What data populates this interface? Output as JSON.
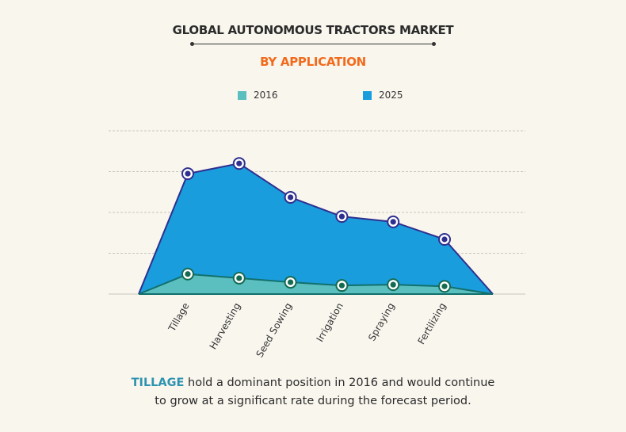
{
  "header": {
    "title": "GLOBAL AUTONOMOUS TRACTORS MARKET",
    "subtitle": "BY APPLICATION"
  },
  "caption": {
    "highlight": "TILLAGE",
    "line1_rest": " hold a dominant position in 2016 and would continue",
    "line2": "to grow at a significant rate during the forecast period."
  },
  "chart_data": {
    "type": "area",
    "title": "GLOBAL AUTONOMOUS TRACTORS MARKET",
    "subtitle": "BY APPLICATION",
    "categories": [
      "Tillage",
      "Harvesting",
      "Seed Sowing",
      "Irrigation",
      "Spraying",
      "Fertilizing"
    ],
    "series": [
      {
        "name": "2016",
        "values": [
          0.49,
          0.39,
          0.29,
          0.21,
          0.23,
          0.19
        ],
        "fill": "#5bbfc0",
        "line": "#11706b",
        "marker": "#146b52"
      },
      {
        "name": "2025",
        "values": [
          2.95,
          3.2,
          2.37,
          1.9,
          1.77,
          1.34
        ],
        "fill": "#1a9ddc",
        "line": "#2e2f8f",
        "marker": "#2e2f8f"
      }
    ],
    "ylim": [
      0,
      4
    ],
    "y_tick_labels_shown": false,
    "grid": true,
    "legend_position": "top-center",
    "x_label_rotation": "diagonal",
    "xlabel": "",
    "ylabel": ""
  }
}
